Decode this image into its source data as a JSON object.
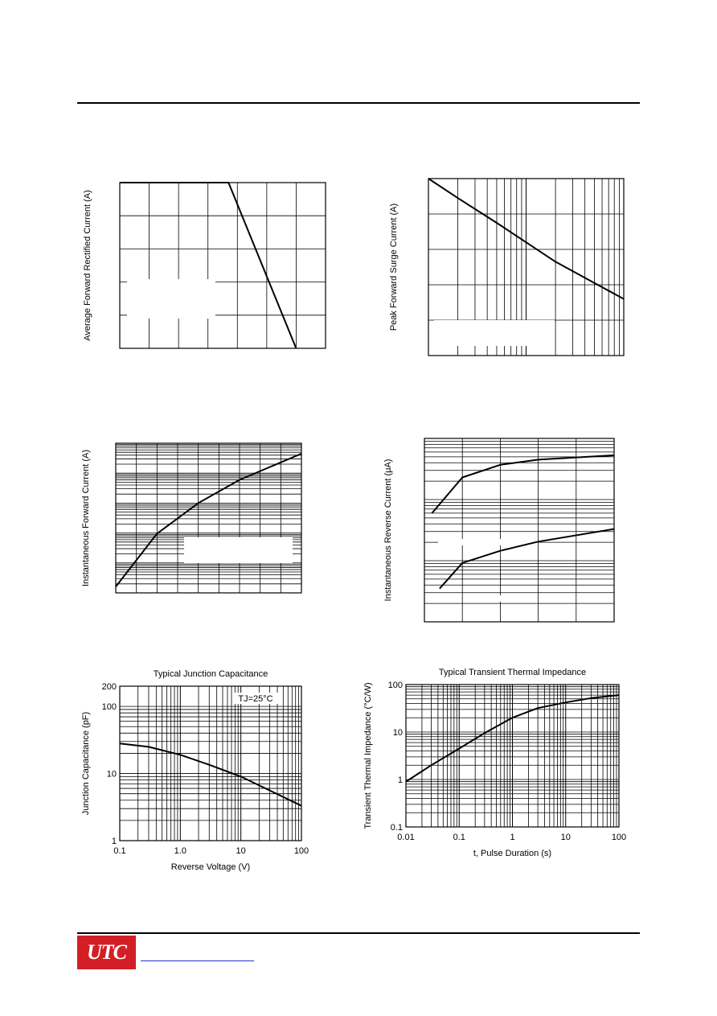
{
  "charts": [
    {
      "type": "line",
      "xscale": "linear",
      "yscale": "linear",
      "ylabel": "Average Forward Rectified Current (A)",
      "series": [
        {
          "x": [
            0,
            3.7,
            6
          ],
          "y": [
            5,
            5,
            0
          ]
        }
      ]
    },
    {
      "type": "line",
      "xscale": "log",
      "yscale": "linear",
      "ylabel": "Peak Forward Surge Current (A)",
      "series": [
        {
          "x": [
            1,
            2,
            5,
            10,
            20,
            50,
            100
          ],
          "y": [
            5,
            4.45,
            3.75,
            3.2,
            2.65,
            2.05,
            1.6
          ]
        }
      ]
    },
    {
      "type": "line",
      "xscale": "linear",
      "yscale": "log",
      "ylabel": "Instantaneous Forward Current (A)",
      "series": [
        {
          "x": [
            0,
            2,
            4,
            6,
            9
          ],
          "y": [
            0.00016,
            0.0095,
            0.1,
            0.6,
            4.5
          ]
        }
      ]
    },
    {
      "type": "line",
      "xscale": "linear",
      "yscale": "log",
      "ylabel": "Instantaneous Reverse Current (μA)",
      "series": [
        {
          "x": [
            0.2,
            1,
            2,
            3,
            5
          ],
          "y": [
            6,
            23,
            37,
            45,
            53
          ]
        },
        {
          "x": [
            0.4,
            1,
            2,
            3,
            5
          ],
          "y": [
            0.35,
            0.92,
            1.45,
            2.05,
            3.3
          ]
        }
      ]
    },
    {
      "type": "line",
      "xscale": "log",
      "yscale": "log",
      "title": "Typical Junction Capacitance",
      "xlabel": "Reverse Voltage (V)",
      "ylabel": "Junction Capacitance (pF)",
      "annotation": "TJ=25°C",
      "xticks": [
        "0.1",
        "1.0",
        "10",
        "100"
      ],
      "yticks": [
        "1",
        "10",
        "100",
        "200"
      ],
      "xlim": [
        0.1,
        100
      ],
      "ylim": [
        1,
        200
      ],
      "series": [
        {
          "x": [
            0.1,
            0.3,
            1,
            3,
            10,
            30,
            100
          ],
          "y": [
            28,
            25,
            19,
            13.5,
            9,
            5.6,
            3.3
          ]
        }
      ]
    },
    {
      "type": "line",
      "xscale": "log",
      "yscale": "log",
      "title": "Typical Transient Thermal Impedance",
      "xlabel": "t, Pulse Duration (s)",
      "ylabel": "Transient Thermal Impedance (°C/W)",
      "xticks": [
        "0.01",
        "0.1",
        "1",
        "10",
        "100"
      ],
      "yticks": [
        "0.1",
        "1",
        "10",
        "100"
      ],
      "xlim": [
        0.01,
        100
      ],
      "ylim": [
        0.1,
        100
      ],
      "series": [
        {
          "x": [
            0.01,
            0.03,
            0.1,
            0.3,
            1,
            3,
            10,
            30,
            100
          ],
          "y": [
            0.9,
            2,
            4.5,
            9.5,
            20,
            32,
            42,
            52,
            60
          ]
        }
      ]
    }
  ],
  "footer": {
    "logo_text": "UTC",
    "logo_color": "#d21f26",
    "link_color": "#1f35d6"
  }
}
